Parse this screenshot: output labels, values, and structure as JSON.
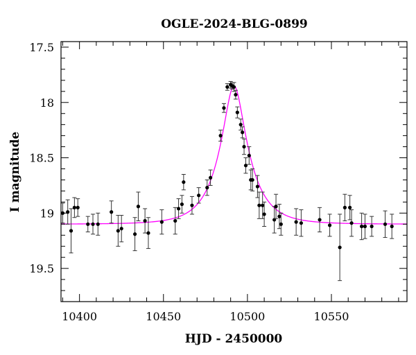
{
  "chart_data": {
    "type": "scatter",
    "title": "OGLE-2024-BLG-0899",
    "xlabel": "HJD - 2450000",
    "ylabel": "I magnitude",
    "xlim": [
      10389,
      10595
    ],
    "ylim": [
      17.45,
      19.8
    ],
    "y_inverted": true,
    "x_ticks": [
      10400,
      10450,
      10500,
      10550
    ],
    "x_tick_labels": [
      "10400",
      "10450",
      "10500",
      "10550"
    ],
    "y_ticks": [
      17.5,
      18,
      18.5,
      19,
      19.5
    ],
    "y_tick_labels": [
      "17.5",
      "18",
      "18.5",
      "19",
      "19.5"
    ],
    "grid": false,
    "colors": {
      "points": "#000000",
      "model": "#ff00ff"
    },
    "series": [
      {
        "type": "scatter_errorbar",
        "x": [
          10390,
          10393,
          10395,
          10397,
          10399,
          10405,
          10408,
          10411,
          10419,
          10423,
          10425,
          10433,
          10435,
          10439,
          10441,
          10449,
          10457,
          10459,
          10461,
          10462,
          10467,
          10471,
          10476,
          10478,
          10484,
          10486,
          10488,
          10490,
          10491,
          10492,
          10493,
          10494,
          10496,
          10497,
          10498,
          10499,
          10501,
          10502,
          10503,
          10506,
          10507,
          10509,
          10510,
          10516,
          10517,
          10519,
          10520,
          10529,
          10532,
          10543,
          10549,
          10555,
          10558,
          10561,
          10562,
          10568,
          10570,
          10574,
          10582,
          10586
        ],
        "y": [
          19.0,
          18.99,
          19.16,
          18.95,
          18.95,
          19.1,
          19.1,
          19.1,
          18.99,
          19.16,
          19.14,
          19.19,
          18.94,
          19.07,
          19.18,
          19.08,
          19.07,
          18.96,
          18.92,
          18.72,
          18.93,
          18.84,
          18.77,
          18.68,
          18.3,
          18.05,
          17.86,
          17.84,
          17.85,
          17.86,
          17.93,
          18.09,
          18.2,
          18.27,
          18.4,
          18.57,
          18.48,
          18.7,
          18.7,
          18.76,
          18.93,
          18.93,
          19.01,
          19.06,
          18.94,
          19.03,
          19.1,
          19.08,
          19.09,
          19.06,
          19.11,
          19.31,
          18.95,
          18.95,
          19.09,
          19.12,
          19.12,
          19.12,
          19.1,
          19.12
        ],
        "err": [
          0.09,
          0.11,
          0.2,
          0.09,
          0.08,
          0.07,
          0.09,
          0.1,
          0.1,
          0.14,
          0.12,
          0.15,
          0.13,
          0.11,
          0.14,
          0.11,
          0.12,
          0.09,
          0.08,
          0.07,
          0.08,
          0.07,
          0.07,
          0.07,
          0.05,
          0.04,
          0.03,
          0.03,
          0.03,
          0.04,
          0.04,
          0.05,
          0.05,
          0.05,
          0.07,
          0.07,
          0.08,
          0.09,
          0.1,
          0.1,
          0.12,
          0.12,
          0.11,
          0.12,
          0.11,
          0.11,
          0.1,
          0.12,
          0.12,
          0.11,
          0.1,
          0.3,
          0.12,
          0.11,
          0.12,
          0.12,
          0.11,
          0.09,
          0.12,
          0.11
        ]
      },
      {
        "type": "line",
        "model": {
          "t0": 10492,
          "baseline": 19.1,
          "peak_mag": 17.85,
          "tE": 17
        }
      }
    ]
  }
}
